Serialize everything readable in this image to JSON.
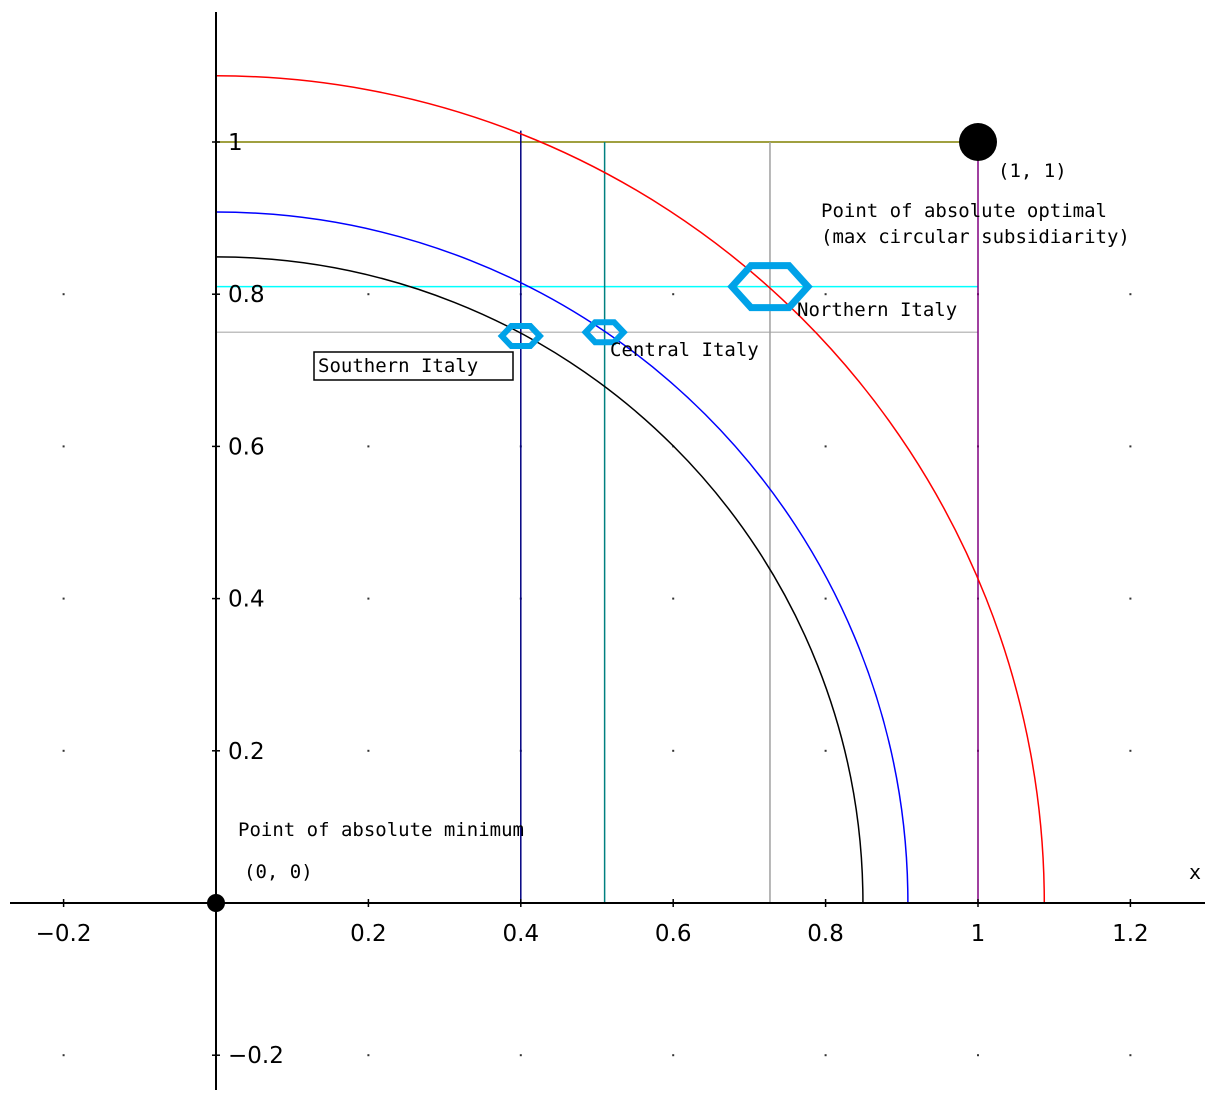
{
  "chart_data": {
    "type": "scatter",
    "xlabel": "x",
    "ylabel": "",
    "xlim": [
      -0.27,
      1.29
    ],
    "ylim": [
      -0.24,
      1.2
    ],
    "x_ticks": [
      -0.2,
      0.2,
      0.4,
      0.6,
      0.8,
      1,
      1.2
    ],
    "x_tick_labels": [
      "−0.2",
      "0.2",
      "0.4",
      "0.6",
      "0.8",
      "1",
      "1.2"
    ],
    "y_ticks": [
      -0.2,
      0.2,
      0.4,
      0.6,
      0.8,
      1
    ],
    "y_tick_labels": [
      "−0.2",
      "0.2",
      "0.4",
      "0.6",
      "0.8",
      "1"
    ],
    "grid": "dots",
    "arcs": [
      {
        "radius": 1.087,
        "color": "#ff0000"
      },
      {
        "radius": 0.908,
        "color": "#0000ff"
      },
      {
        "radius": 0.849,
        "color": "#000000"
      }
    ],
    "vertical_lines": [
      {
        "x": 0.4,
        "y_top": 1.015,
        "color": "#000080"
      },
      {
        "x": 0.51,
        "y_top": 1.0,
        "color": "#008080"
      },
      {
        "x": 0.727,
        "y_top": 1.0,
        "color": "#a0a0a0"
      },
      {
        "x": 1.0,
        "y_top": 1.0,
        "color": "#800080"
      }
    ],
    "horizontal_lines": [
      {
        "y": 1.0,
        "x_end": 1.0,
        "color": "#808000"
      },
      {
        "y": 0.81,
        "x_end": 1.0,
        "color": "#00ffff"
      },
      {
        "y": 0.75,
        "x_end": 1.0,
        "color": "#c0c0c0"
      }
    ],
    "regions": [
      {
        "name": "Southern Italy",
        "x": 0.4,
        "y": 0.745,
        "size": "small"
      },
      {
        "name": "Central Italy",
        "x": 0.51,
        "y": 0.75,
        "size": "small"
      },
      {
        "name": "Northern Italy",
        "x": 0.727,
        "y": 0.81,
        "size": "large"
      }
    ],
    "special_points": [
      {
        "x": 1,
        "y": 1,
        "label": "(1, 1)",
        "color": "#000000"
      },
      {
        "x": 0,
        "y": 0,
        "label": "(0, 0)",
        "color": "#000000"
      }
    ],
    "annotations": {
      "optimal_line1": "Point of absolute optimal",
      "optimal_line2": "(max circular subsidiarity)",
      "minimum": "Point of absolute minimum",
      "southern": "Southern Italy",
      "central": "Central Italy",
      "northern": "Northern Italy",
      "pt_one": "(1, 1)",
      "pt_zero": "(0, 0)"
    },
    "marker_color": "#00a2e8"
  }
}
